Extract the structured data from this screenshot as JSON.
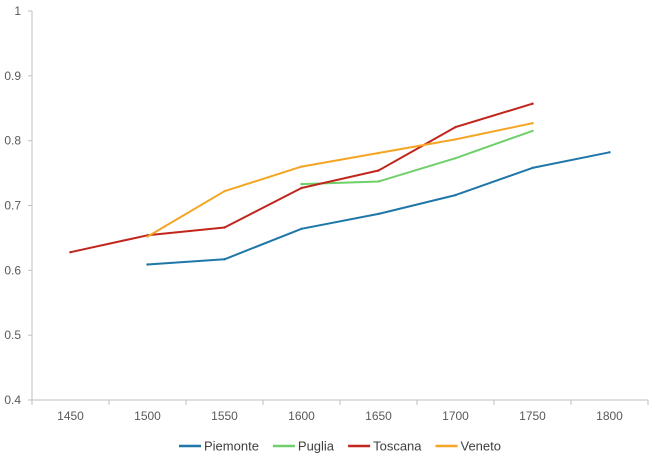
{
  "chart_data": {
    "type": "line",
    "title": "",
    "xlabel": "",
    "ylabel": "",
    "x": [
      1450,
      1500,
      1550,
      1600,
      1650,
      1700,
      1750,
      1800
    ],
    "x_tick_labels": [
      "1450",
      "1500",
      "1550",
      "1600",
      "1650",
      "1700",
      "1750",
      "1800"
    ],
    "ylim": [
      0.4,
      1
    ],
    "y_ticks": [
      0.4,
      0.5,
      0.6,
      0.7,
      0.8,
      0.9,
      1
    ],
    "y_tick_labels": [
      "0.4",
      "0.5",
      "0.6",
      "0.7",
      "0.8",
      "0.9",
      "1"
    ],
    "grid": false,
    "legend_position": "bottom",
    "series": [
      {
        "name": "Piemonte",
        "color": "#1f77a8",
        "values": [
          null,
          0.609,
          0.617,
          0.664,
          0.687,
          0.716,
          0.758,
          0.782
        ]
      },
      {
        "name": "Puglia",
        "color": "#6fd06a",
        "values": [
          null,
          null,
          null,
          0.733,
          0.737,
          0.773,
          0.815,
          null
        ]
      },
      {
        "name": "Toscana",
        "color": "#c0261c",
        "values": [
          0.628,
          0.654,
          0.666,
          0.727,
          0.754,
          0.821,
          0.857,
          null
        ]
      },
      {
        "name": "Veneto",
        "color": "#f5a524",
        "values": [
          null,
          0.652,
          0.722,
          0.76,
          0.781,
          0.802,
          0.827,
          null
        ]
      }
    ]
  }
}
